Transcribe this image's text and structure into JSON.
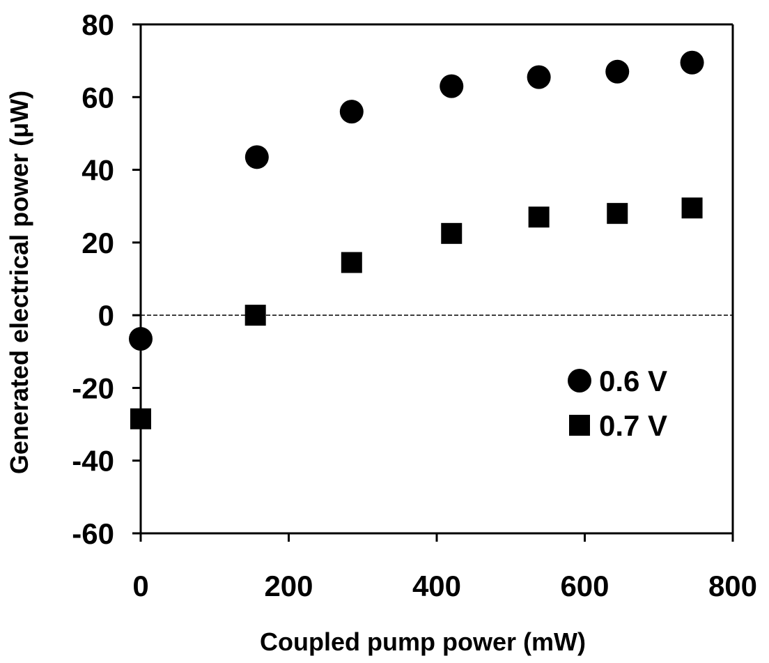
{
  "chart_data": {
    "type": "scatter",
    "title": "",
    "xlabel": "Coupled pump power (mW)",
    "ylabel": "Generated electrical power (μW)",
    "xlim": [
      0,
      800
    ],
    "ylim": [
      -60,
      80
    ],
    "x_ticks": [
      "0",
      "200",
      "400",
      "600",
      "800"
    ],
    "y_ticks": [
      "80",
      "60",
      "40",
      "20",
      "0",
      "-20",
      "-40",
      "-60"
    ],
    "grid": false,
    "zero_reference_line": "dashed",
    "legend_position": "lower-right",
    "series": [
      {
        "name": "0.6 V",
        "marker": "circle",
        "color": "#000000",
        "points": [
          {
            "x": 0,
            "y": -6.5
          },
          {
            "x": 157,
            "y": 43.5
          },
          {
            "x": 285,
            "y": 56
          },
          {
            "x": 420,
            "y": 63
          },
          {
            "x": 538,
            "y": 65.5
          },
          {
            "x": 644,
            "y": 67
          },
          {
            "x": 745,
            "y": 69.5
          }
        ]
      },
      {
        "name": "0.7 V",
        "marker": "square",
        "color": "#000000",
        "points": [
          {
            "x": 0,
            "y": -28.5
          },
          {
            "x": 155,
            "y": 0
          },
          {
            "x": 285,
            "y": 14.5
          },
          {
            "x": 420,
            "y": 22.5
          },
          {
            "x": 538,
            "y": 27
          },
          {
            "x": 644,
            "y": 28
          },
          {
            "x": 745,
            "y": 29.5
          }
        ]
      }
    ]
  }
}
